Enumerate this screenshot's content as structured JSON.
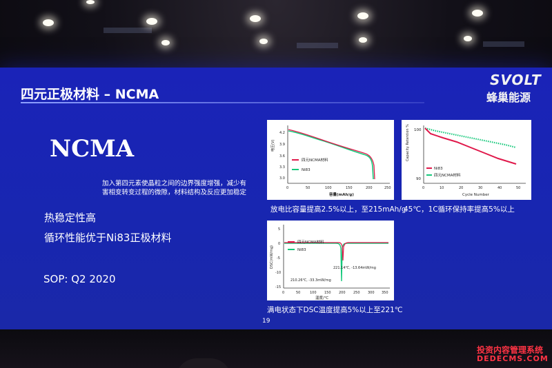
{
  "slide": {
    "title": "四元正极材料 – NCMA",
    "brand_en": "SVOLT",
    "brand_cn": "蜂巢能源",
    "heading": "NCMA",
    "description": [
      "加入第四元素使晶粒之间的边界强度增强，减少有",
      "害相变转变过程的微隙，材料结构及反应更加稳定"
    ],
    "bullets": [
      "热稳定性高",
      "循环性能优于Ni83正极材料"
    ],
    "sop": "SOP: Q2 2020",
    "page_number": "19",
    "colors": {
      "background": "#1a23b8",
      "ncma_series": "#e0184a",
      "ni83_series": "#14c87a"
    }
  },
  "charts": {
    "discharge": {
      "caption": "放电比容量提高2.5%以上，至215mAh/g",
      "ylabel": "电压(V)",
      "xlabel": "容量(mAh/g)",
      "yticks": [
        "4.2",
        "3.9",
        "3.6",
        "3.3",
        "3.0"
      ],
      "xticks": [
        "0",
        "50",
        "100",
        "150",
        "200",
        "250"
      ],
      "legend": [
        "四元NCMA材料",
        "Ni83"
      ]
    },
    "cycle": {
      "caption": "45℃，1C循环保持率提高5%以上",
      "ylabel": "Capacity Retention %",
      "xlabel": "Cycle Number",
      "yticks": [
        "100",
        "90"
      ],
      "xticks": [
        "0",
        "10",
        "20",
        "30",
        "40",
        "50"
      ],
      "legend": [
        "Ni83",
        "四元NCMA材料"
      ]
    },
    "dsc": {
      "caption": "满电状态下DSC温度提高5%以上至221℃",
      "ylabel": "DSC(mW/mg)",
      "xlabel": "温度/℃",
      "yticks": [
        "5",
        "0",
        "-5",
        "-10",
        "-15"
      ],
      "xticks": [
        "0",
        "50",
        "100",
        "150",
        "200",
        "250",
        "300",
        "350"
      ],
      "legend": [
        "四元NCMA材料",
        "Ni83"
      ],
      "annotation_ncma": "221.14℃, -13.64mW/mg",
      "annotation_ni83": "210.26℃, -33.3mW/mg"
    }
  },
  "watermark": {
    "line1": "投资内容管理系统",
    "line2": "DEDECMS.COM"
  }
}
